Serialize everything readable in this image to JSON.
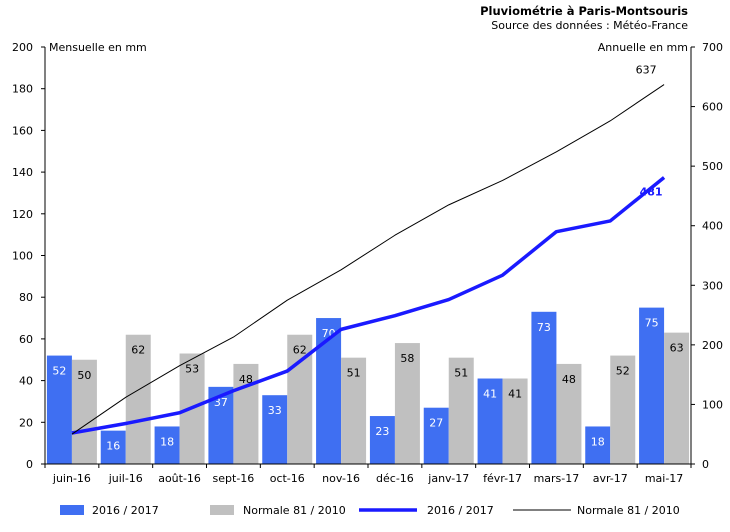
{
  "chart_data": {
    "type": "bar",
    "title": "Pluviométrie à Paris-Montsouris",
    "subtitle": "Source des données : Météo-France",
    "ylabel_left": "Mensuelle en mm",
    "ylabel_right": "Annuelle en mm",
    "categories": [
      "juin-16",
      "juil-16",
      "août-16",
      "sept-16",
      "oct-16",
      "nov-16",
      "déc-16",
      "janv-17",
      "févr-17",
      "mars-17",
      "avr-17",
      "mai-17"
    ],
    "ylim_left": [
      0,
      200
    ],
    "yticks_left": [
      0,
      20,
      40,
      60,
      80,
      100,
      120,
      140,
      160,
      180,
      200
    ],
    "ylim_right": [
      0,
      700
    ],
    "yticks_right": [
      0,
      100,
      200,
      300,
      400,
      500,
      600,
      700
    ],
    "grid": false,
    "legend_position": "bottom",
    "series": [
      {
        "name": "2016 / 2017",
        "kind": "bar",
        "axis": "left",
        "color": "#3f6ff2",
        "values": [
          52,
          16,
          18,
          37,
          33,
          70,
          23,
          27,
          41,
          73,
          18,
          75
        ]
      },
      {
        "name": "Normale 81 / 2010",
        "kind": "bar",
        "axis": "left",
        "color": "#c0c0c0",
        "values": [
          50,
          62,
          53,
          48,
          62,
          51,
          58,
          51,
          41,
          48,
          52,
          63
        ]
      },
      {
        "name": "2016 / 2017",
        "kind": "line",
        "axis": "right",
        "color": "#1a1aff",
        "values": [
          52,
          68,
          86,
          123,
          156,
          226,
          249,
          276,
          317,
          390,
          408,
          481
        ],
        "end_label": "481"
      },
      {
        "name": "Normale 81 / 2010",
        "kind": "line",
        "axis": "right",
        "color": "#000000",
        "values": [
          50,
          112,
          165,
          213,
          275,
          326,
          384,
          435,
          476,
          524,
          576,
          637
        ],
        "end_label": "637"
      }
    ]
  }
}
